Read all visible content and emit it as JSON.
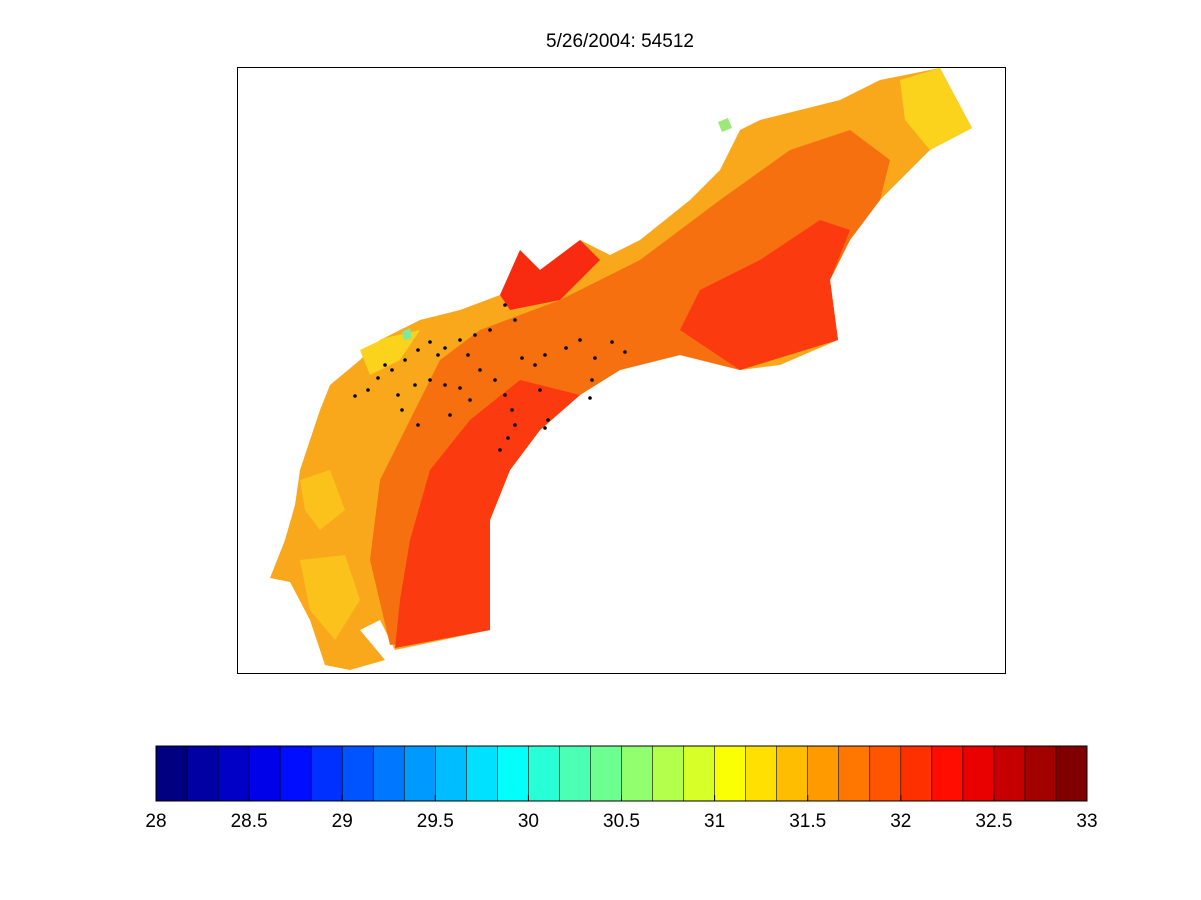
{
  "chart_data": {
    "type": "contourf",
    "title": "5/26/2004: 54512",
    "colorbar": {
      "lim": [
        28,
        33
      ],
      "ticks": [
        28,
        28.5,
        29,
        29.5,
        30,
        30.5,
        31,
        31.5,
        32,
        32.5,
        33
      ],
      "levels": 30,
      "colormap": "jet",
      "location": "south"
    }
  }
}
